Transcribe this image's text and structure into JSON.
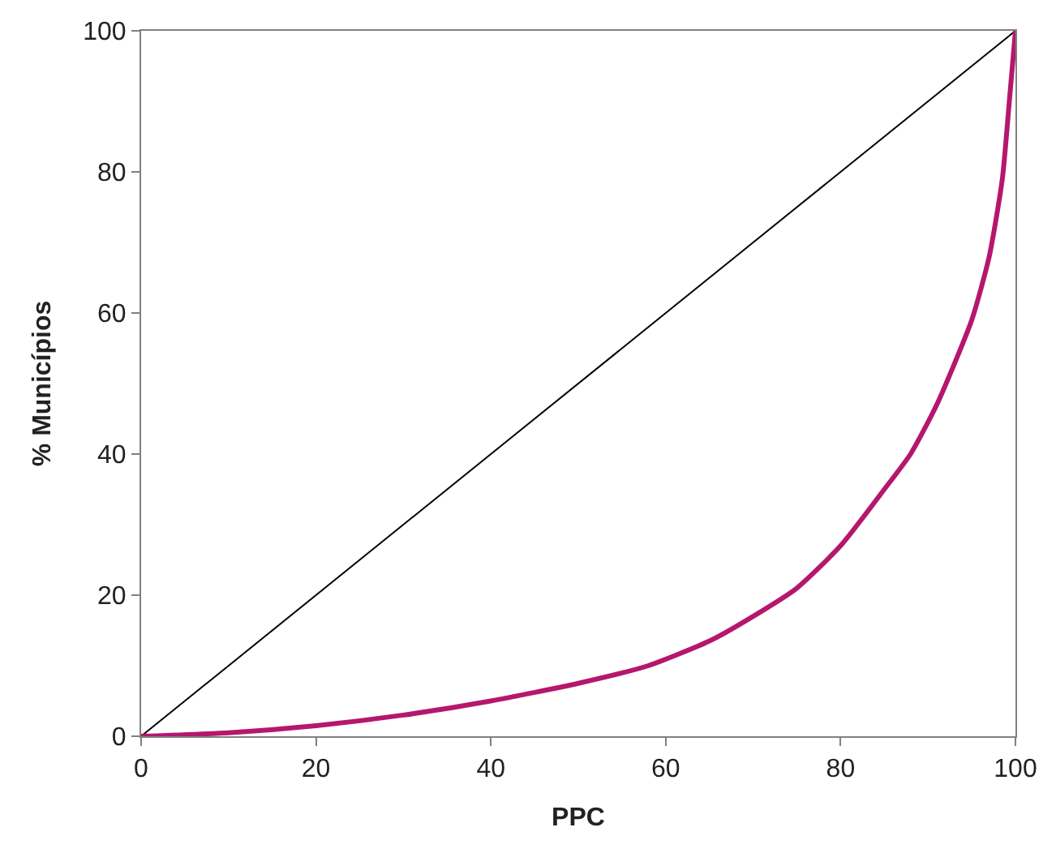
{
  "chart_data": {
    "type": "line",
    "xlabel": "PPC",
    "ylabel": "% Municípios",
    "xlim": [
      0,
      100
    ],
    "ylim": [
      0,
      100
    ],
    "xticks": [
      0,
      20,
      40,
      60,
      80,
      100
    ],
    "yticks": [
      0,
      20,
      40,
      60,
      80,
      100
    ],
    "marker": "none",
    "series": [
      {
        "color": "#000000",
        "x": [
          0,
          100
        ],
        "values": [
          0,
          100
        ]
      },
      {
        "color": "#b5176e",
        "x": [
          0,
          10,
          20,
          30,
          40,
          50,
          58,
          65,
          70,
          75,
          80,
          85,
          88,
          91,
          95,
          97,
          98.5,
          99.3,
          100
        ],
        "values": [
          0,
          0.5,
          1.5,
          3,
          5,
          7.5,
          10,
          13.5,
          17,
          21,
          27,
          35,
          40,
          47,
          59,
          68,
          79,
          90,
          100
        ]
      }
    ]
  }
}
